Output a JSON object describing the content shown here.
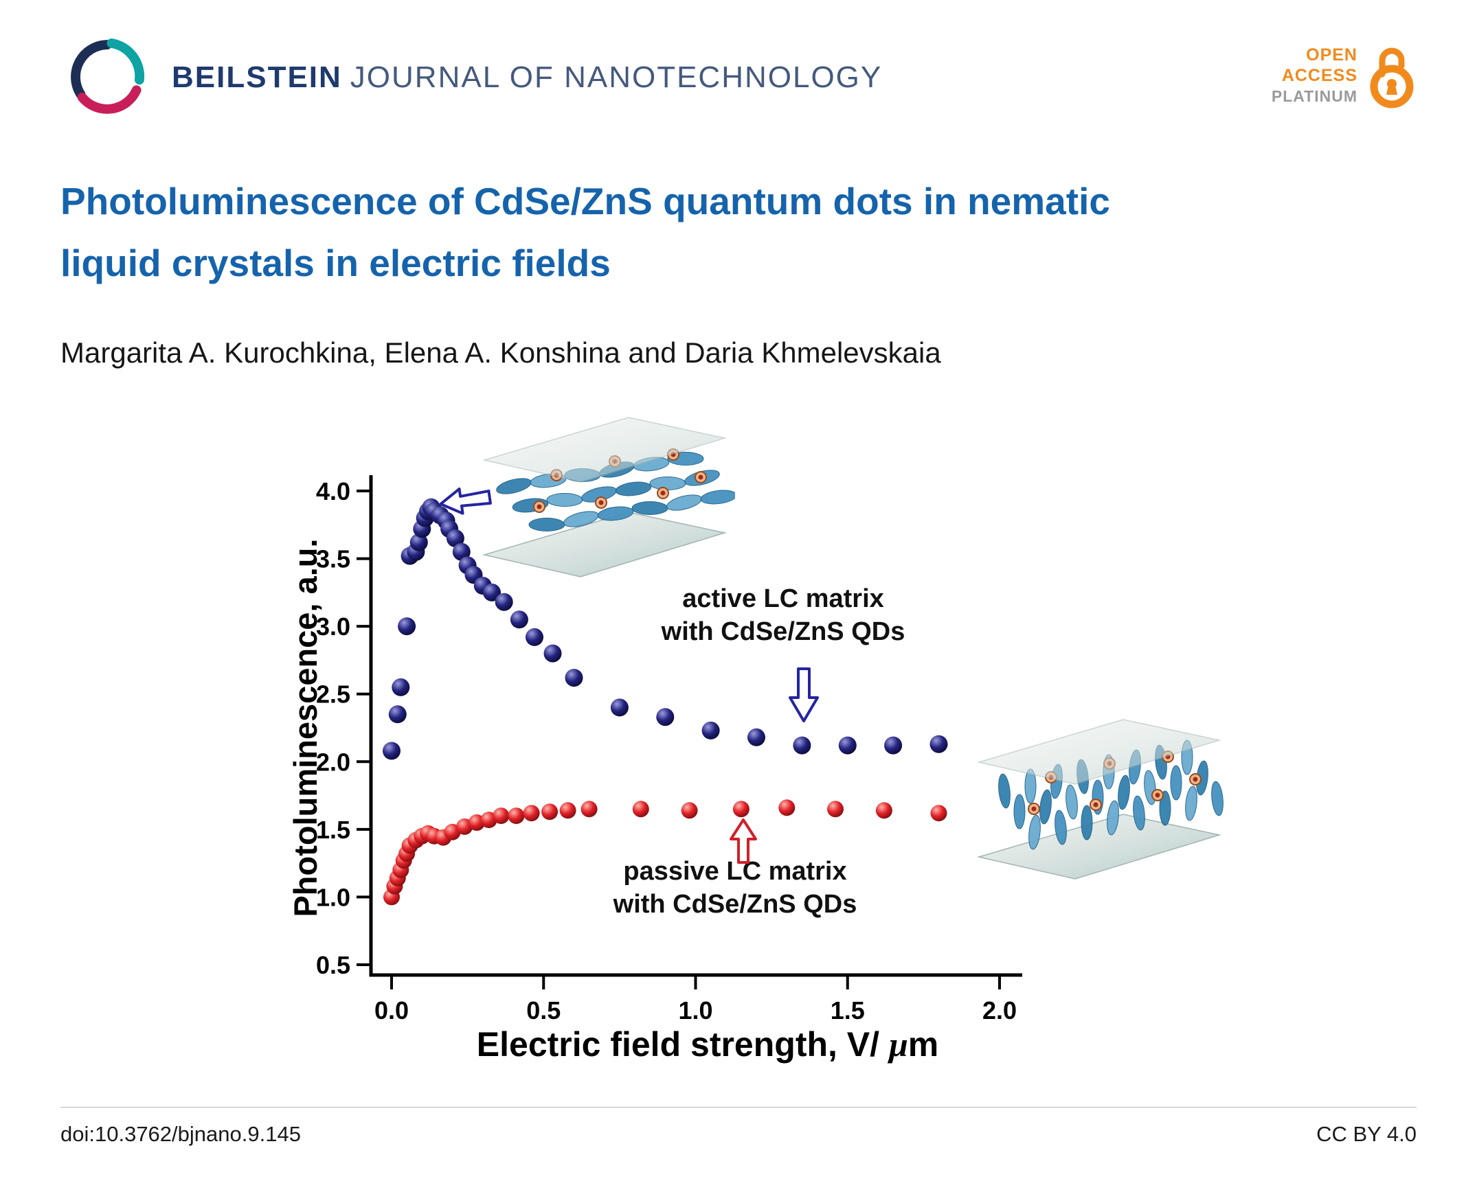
{
  "header": {
    "journal_name_bold": "BEILSTEIN",
    "journal_name_rest": "JOURNAL OF NANOTECHNOLOGY",
    "open_access_line1": "OPEN",
    "open_access_line2": "ACCESS",
    "open_access_line3": "PLATINUM"
  },
  "article": {
    "title_line1": "Photoluminescence of CdSe/ZnS quantum dots in nematic",
    "title_line2": "liquid crystals in electric fields",
    "authors": "Margarita A. Kurochkina, Elena A. Konshina and Daria Khmelevskaia"
  },
  "footer": {
    "doi": "doi:10.3762/bjnano.9.145",
    "license": "CC BY 4.0"
  },
  "colors": {
    "title_blue": "#1563ac",
    "journal_navy": "#1e3a6e",
    "journal_gray_blue": "#44597d",
    "accent_orange": "#f18a1d",
    "active_series": "#1b1b78",
    "passive_series": "#e02026",
    "axis_black": "#000000"
  },
  "chart_data": {
    "type": "scatter",
    "title": "",
    "xlabel": "Electric field strength, V/ μm",
    "xlabel_prefix": "Electric field strength, V/ ",
    "xlabel_mu": "μ",
    "xlabel_m": "m",
    "ylabel": "Photoluminescence, a.u.",
    "xlim": [
      -0.08,
      2.08
    ],
    "ylim": [
      0.5,
      4.0
    ],
    "xticks": [
      0,
      0.5,
      1,
      1.5,
      2
    ],
    "yticks": [
      0.5,
      1,
      1.5,
      2,
      2.5,
      3,
      3.5,
      4
    ],
    "grid": false,
    "legend_position": "inline-annotations",
    "series": [
      {
        "name": "active LC matrix with CdSe/ZnS QDs",
        "color": "#1b1b78",
        "x": [
          0.0,
          0.02,
          0.03,
          0.05,
          0.06,
          0.08,
          0.09,
          0.1,
          0.11,
          0.12,
          0.13,
          0.14,
          0.16,
          0.18,
          0.19,
          0.21,
          0.23,
          0.25,
          0.27,
          0.3,
          0.33,
          0.37,
          0.42,
          0.47,
          0.53,
          0.6,
          0.75,
          0.9,
          1.05,
          1.2,
          1.35,
          1.5,
          1.65,
          1.8
        ],
        "y": [
          2.08,
          2.35,
          2.55,
          3.0,
          3.52,
          3.55,
          3.62,
          3.72,
          3.8,
          3.85,
          3.88,
          3.85,
          3.82,
          3.78,
          3.72,
          3.65,
          3.55,
          3.45,
          3.38,
          3.3,
          3.25,
          3.18,
          3.05,
          2.92,
          2.8,
          2.62,
          2.4,
          2.33,
          2.23,
          2.18,
          2.12,
          2.12,
          2.12,
          2.13
        ]
      },
      {
        "name": "passive LC matrix with CdSe/ZnS QDs",
        "color": "#e02026",
        "x": [
          0.0,
          0.01,
          0.02,
          0.03,
          0.04,
          0.05,
          0.06,
          0.08,
          0.1,
          0.12,
          0.14,
          0.17,
          0.2,
          0.24,
          0.28,
          0.32,
          0.36,
          0.41,
          0.46,
          0.52,
          0.58,
          0.65,
          0.82,
          0.98,
          1.15,
          1.3,
          1.46,
          1.62,
          1.8
        ],
        "y": [
          1.0,
          1.08,
          1.14,
          1.2,
          1.27,
          1.32,
          1.38,
          1.42,
          1.45,
          1.47,
          1.45,
          1.44,
          1.48,
          1.52,
          1.55,
          1.57,
          1.6,
          1.6,
          1.62,
          1.63,
          1.64,
          1.65,
          1.65,
          1.64,
          1.65,
          1.66,
          1.65,
          1.64,
          1.62
        ]
      }
    ],
    "annotations": {
      "active_line1": "active LC matrix",
      "active_line2": "with CdSe/ZnS QDs",
      "passive_line1": "passive LC matrix",
      "passive_line2": "with CdSe/ZnS QDs"
    }
  }
}
